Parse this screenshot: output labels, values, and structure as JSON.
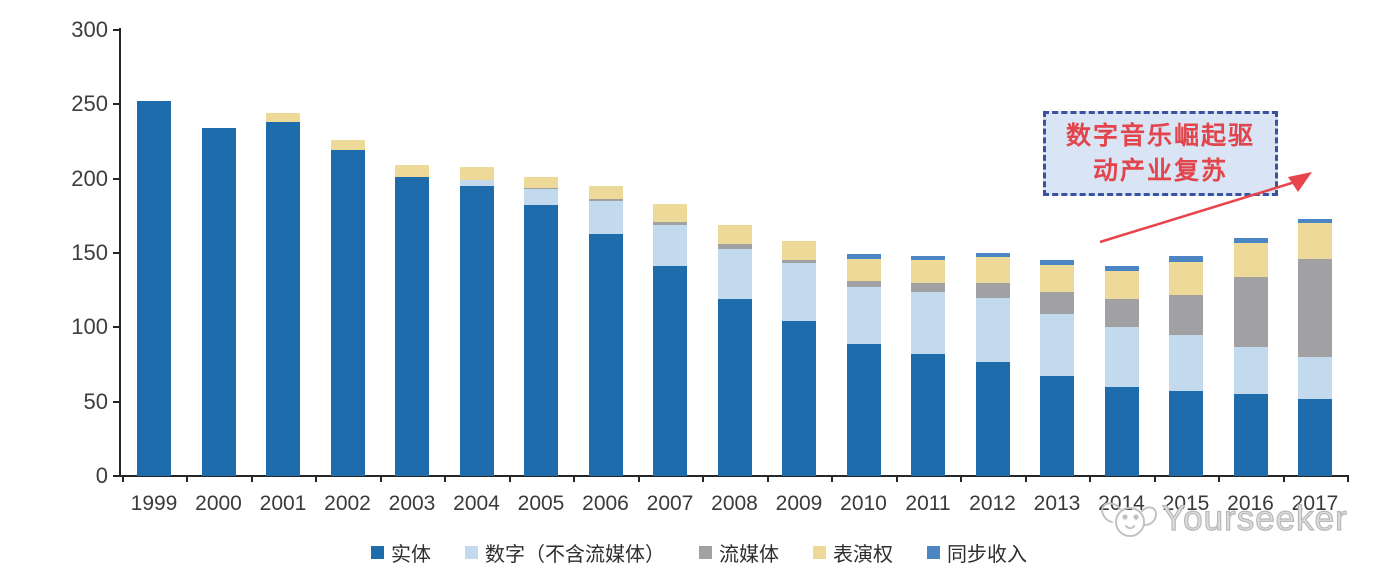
{
  "chart_data": {
    "type": "bar",
    "stacked": true,
    "title": "",
    "xlabel": "",
    "ylabel": "",
    "ylim": [
      0,
      300
    ],
    "yticks": [
      0,
      50,
      100,
      150,
      200,
      250,
      300
    ],
    "grid": false,
    "legend_position": "bottom",
    "categories": [
      "1999",
      "2000",
      "2001",
      "2002",
      "2003",
      "2004",
      "2005",
      "2006",
      "2007",
      "2008",
      "2009",
      "2010",
      "2011",
      "2012",
      "2013",
      "2014",
      "2015",
      "2016",
      "2017"
    ],
    "series": [
      {
        "key": "physical",
        "name": "实体",
        "color": "#1f6cac",
        "values": [
          252,
          234,
          238,
          219,
          201,
          195,
          182,
          163,
          141,
          119,
          104,
          89,
          82,
          77,
          67,
          60,
          57,
          55,
          52
        ]
      },
      {
        "key": "digital-excl-streaming",
        "name": "数字（不含流媒体）",
        "color": "#c3d9ee",
        "values": [
          0,
          0,
          0,
          0,
          0,
          4,
          11,
          22,
          28,
          34,
          39,
          38,
          42,
          43,
          42,
          40,
          38,
          32,
          28
        ]
      },
      {
        "key": "streaming",
        "name": "流媒体",
        "color": "#a1a1a4",
        "values": [
          0,
          0,
          0,
          0,
          0,
          0,
          1,
          1,
          2,
          3,
          2,
          4,
          6,
          10,
          15,
          19,
          27,
          47,
          66
        ]
      },
      {
        "key": "performance-rights",
        "name": "表演权",
        "color": "#edda99",
        "values": [
          0,
          0,
          6,
          7,
          8,
          9,
          7,
          9,
          12,
          13,
          13,
          15,
          15,
          17,
          18,
          19,
          22,
          23,
          24
        ]
      },
      {
        "key": "sync-revenue",
        "name": "同步收入",
        "color": "#4c85c4",
        "values": [
          0,
          0,
          0,
          0,
          0,
          0,
          0,
          0,
          0,
          0,
          0,
          3,
          3,
          3,
          3,
          3,
          4,
          3,
          3
        ]
      }
    ]
  },
  "annotation": {
    "line1": "数字音乐崛起驱",
    "line2": "动产业复苏",
    "text_color": "#e2454b",
    "box_fill": "#d9e4f4",
    "box_border": "#3b52a3",
    "arrow_color": "#e8444c"
  },
  "watermark": {
    "text": "Yourseeker"
  }
}
